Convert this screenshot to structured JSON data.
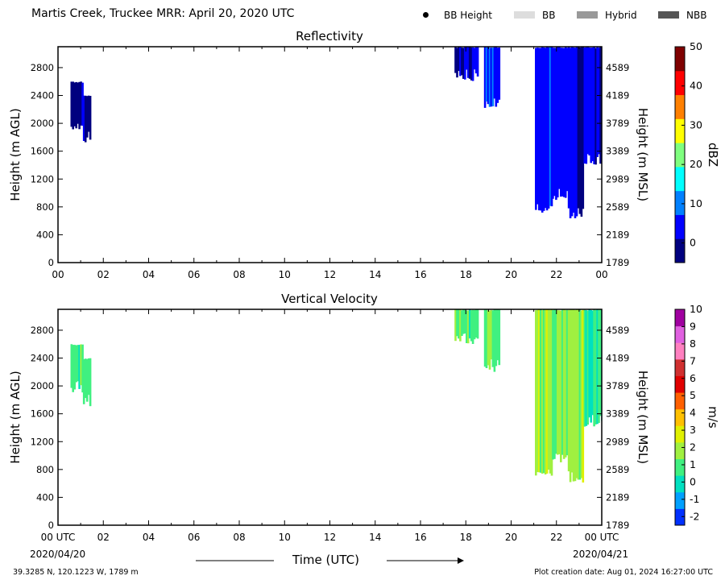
{
  "header": {
    "title": "Martis Creek, Truckee MRR:  April 20, 2020 UTC",
    "legend": [
      {
        "label": "BB Height",
        "marker": "dot",
        "color": "#000000"
      },
      {
        "label": "BB",
        "marker": "swatch",
        "color": "#dddddd"
      },
      {
        "label": "Hybrid",
        "marker": "swatch",
        "color": "#999999"
      },
      {
        "label": "NBB",
        "marker": "swatch",
        "color": "#555555"
      }
    ]
  },
  "footer": {
    "location": "39.3285 N, 120.1223 W, 1789 m",
    "creation": "Plot creation date: Aug 01, 2024 16:27:00 UTC",
    "time_label": "Time (UTC)",
    "start_date": "2020/04/20",
    "end_date": "2020/04/21"
  },
  "chart_data": [
    {
      "type": "heatmap",
      "title": "Reflectivity",
      "ylabel": "Height (m AGL)",
      "ylabel_right": "Height (m MSL)",
      "x_ticks": [
        "00",
        "02",
        "04",
        "06",
        "08",
        "10",
        "12",
        "14",
        "16",
        "18",
        "20",
        "22",
        "00"
      ],
      "y_ticks": [
        0,
        400,
        800,
        1200,
        1600,
        2000,
        2400,
        2800
      ],
      "y_ticks_right": [
        1789,
        2189,
        2589,
        2989,
        3389,
        3789,
        4189,
        4589
      ],
      "xlim": [
        0,
        24
      ],
      "ylim": [
        0,
        3100
      ],
      "colorbar": {
        "label": "dBZ",
        "range": [
          -5,
          50
        ],
        "ticks": [
          0,
          10,
          20,
          30,
          40,
          50
        ],
        "colors": [
          "#00007f",
          "#0000ff",
          "#0080ff",
          "#00ffff",
          "#7fff7f",
          "#ffff00",
          "#ff8000",
          "#ff0000",
          "#7f0000"
        ]
      },
      "echoes": [
        {
          "start_hour": 0.55,
          "end_hour": 1.1,
          "bottom_m": 1900,
          "top_m": 2600,
          "value": -1
        },
        {
          "start_hour": 1.1,
          "end_hour": 1.45,
          "bottom_m": 1700,
          "top_m": 2400,
          "value": 0
        },
        {
          "start_hour": 17.5,
          "end_hour": 18.5,
          "bottom_m": 2600,
          "top_m": 3100,
          "value": 2
        },
        {
          "start_hour": 18.8,
          "end_hour": 19.5,
          "bottom_m": 2200,
          "top_m": 3100,
          "value": 6
        },
        {
          "start_hour": 21.05,
          "end_hour": 21.8,
          "bottom_m": 700,
          "top_m": 3100,
          "value": 5
        },
        {
          "start_hour": 21.8,
          "end_hour": 22.5,
          "bottom_m": 900,
          "top_m": 3100,
          "value": 3
        },
        {
          "start_hour": 22.5,
          "end_hour": 23.2,
          "bottom_m": 600,
          "top_m": 3100,
          "value": 2
        },
        {
          "start_hour": 23.2,
          "end_hour": 24.0,
          "bottom_m": 1400,
          "top_m": 3100,
          "value": 3
        }
      ]
    },
    {
      "type": "heatmap",
      "title": "Vertical Velocity",
      "ylabel": "Height (m AGL)",
      "ylabel_right": "Height (m MSL)",
      "x_ticks": [
        "00 UTC",
        "02",
        "04",
        "06",
        "08",
        "10",
        "12",
        "14",
        "16",
        "18",
        "20",
        "22",
        "00 UTC"
      ],
      "y_ticks": [
        0,
        400,
        800,
        1200,
        1600,
        2000,
        2400,
        2800
      ],
      "y_ticks_right": [
        1789,
        2189,
        2589,
        2989,
        3389,
        3789,
        4189,
        4589
      ],
      "xlim": [
        0,
        24
      ],
      "ylim": [
        0,
        3100
      ],
      "colorbar": {
        "label": "m/s",
        "range": [
          -2.5,
          10
        ],
        "ticks": [
          -2,
          -1,
          0,
          1,
          2,
          3,
          4,
          5,
          6,
          7,
          8,
          9,
          10
        ],
        "colors": [
          "#0030ff",
          "#00a0ff",
          "#00e0c0",
          "#40f080",
          "#a0f040",
          "#e0f000",
          "#ffc000",
          "#ff6000",
          "#e00000",
          "#d03030",
          "#ff80c0",
          "#e060e0",
          "#a000a0"
        ]
      },
      "echoes": [
        {
          "start_hour": 0.55,
          "end_hour": 1.1,
          "bottom_m": 1900,
          "top_m": 2600,
          "value": 0.8
        },
        {
          "start_hour": 1.1,
          "end_hour": 1.45,
          "bottom_m": 1700,
          "top_m": 2400,
          "value": 1
        },
        {
          "start_hour": 17.5,
          "end_hour": 18.5,
          "bottom_m": 2600,
          "top_m": 3100,
          "value": 1
        },
        {
          "start_hour": 18.8,
          "end_hour": 19.5,
          "bottom_m": 2200,
          "top_m": 3100,
          "value": 1.2
        },
        {
          "start_hour": 21.05,
          "end_hour": 21.8,
          "bottom_m": 700,
          "top_m": 3100,
          "value": 1.8
        },
        {
          "start_hour": 21.8,
          "end_hour": 22.5,
          "bottom_m": 900,
          "top_m": 3100,
          "value": 1.5
        },
        {
          "start_hour": 22.5,
          "end_hour": 23.2,
          "bottom_m": 600,
          "top_m": 3100,
          "value": 1.7
        },
        {
          "start_hour": 23.2,
          "end_hour": 24.0,
          "bottom_m": 1400,
          "top_m": 3100,
          "value": 0.6
        }
      ]
    }
  ]
}
